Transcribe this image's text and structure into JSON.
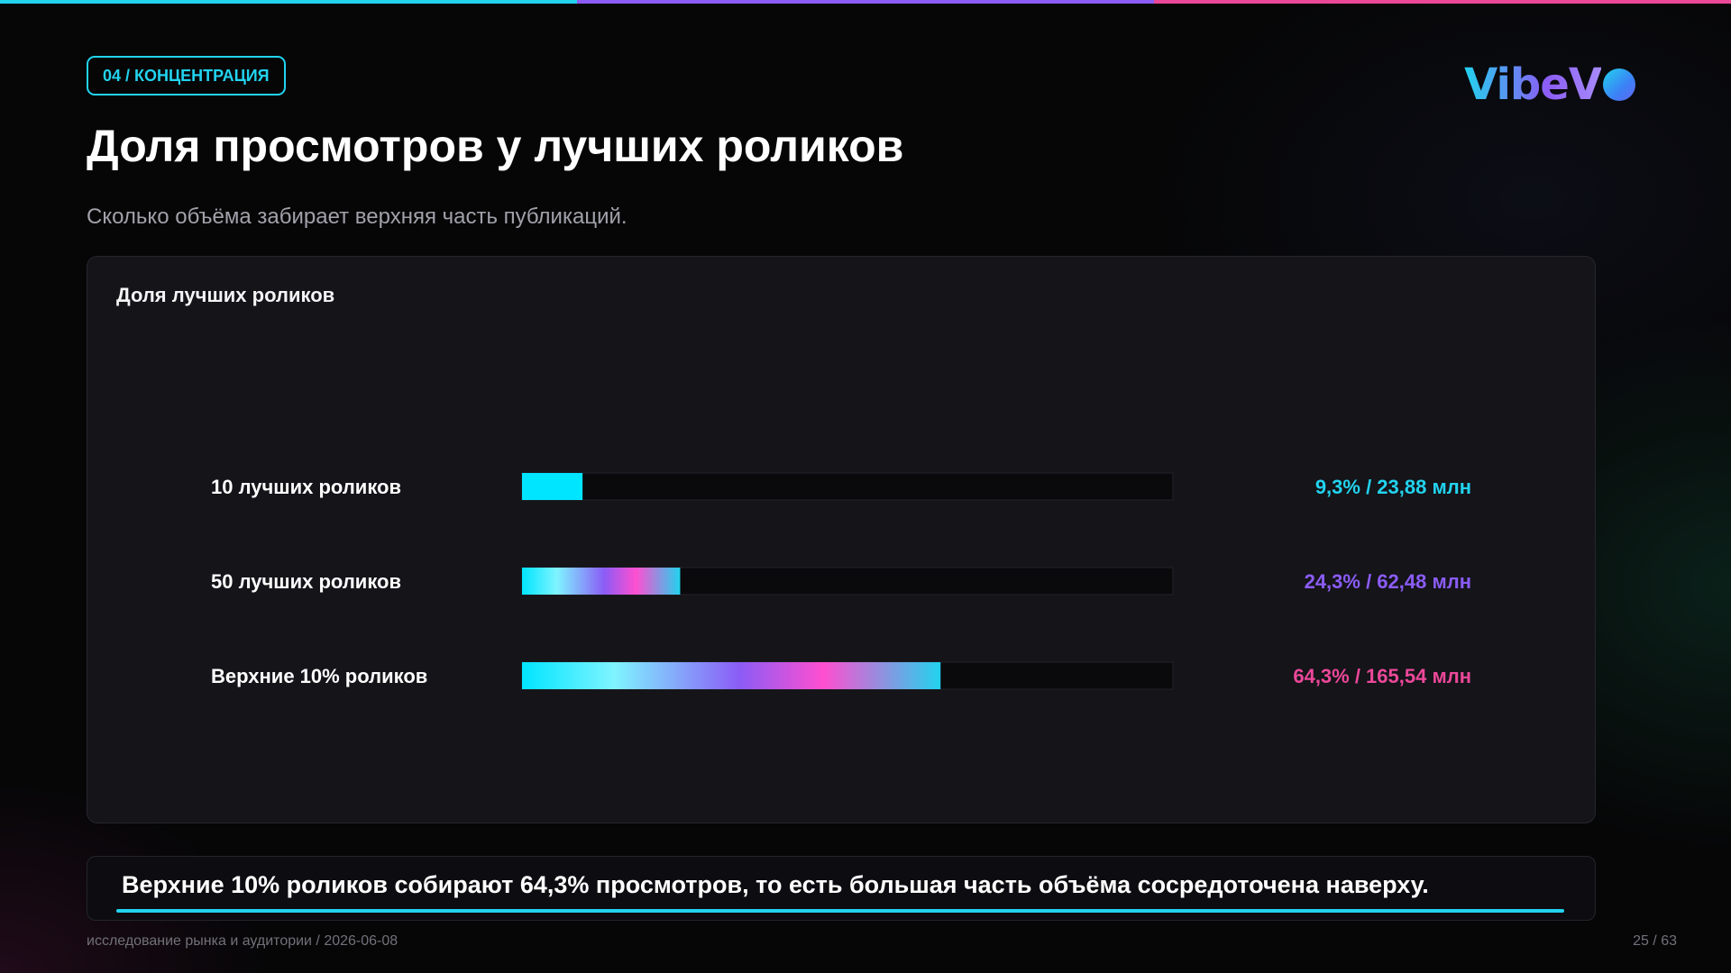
{
  "section_badge": "04 / КОНЦЕНТРАЦИЯ",
  "logo": {
    "text": "VibeV",
    "dot_icon": "logo-dot-icon"
  },
  "title": "Доля просмотров у лучших роликов",
  "subtitle": "Сколько объёма забирает верхняя часть публикаций.",
  "colors": {
    "accent_cyan": "#22d3ee",
    "accent_purple": "#8b5cf6",
    "accent_pink": "#ec4899",
    "bar_track": "#0a0a0d",
    "card_bg": "#141419"
  },
  "chart_data": {
    "type": "bar",
    "orientation": "horizontal",
    "title": "Доля лучших роликов",
    "xlim": [
      0,
      100
    ],
    "categories": [
      "10 лучших роликов",
      "50 лучших роликов",
      "Верхние 10% роликов"
    ],
    "values": [
      9.3,
      24.3,
      64.3
    ],
    "value_labels": [
      "9,3% / 23,88 млн",
      "24,3% / 62,48 млн",
      "64,3% / 165,54 млн"
    ],
    "views_mln": [
      23.88,
      62.48,
      165.54
    ],
    "label_colors": [
      "#22d3ee",
      "#8b5cf6",
      "#ec4899"
    ],
    "legend": "none",
    "grid": false
  },
  "insight": "Верхние 10% роликов собирают 64,3% просмотров, то есть большая часть объёма сосредоточена наверху.",
  "footer": {
    "left": "исследование рынка и аудитории / 2026-06-08",
    "page": "25 / 63"
  }
}
